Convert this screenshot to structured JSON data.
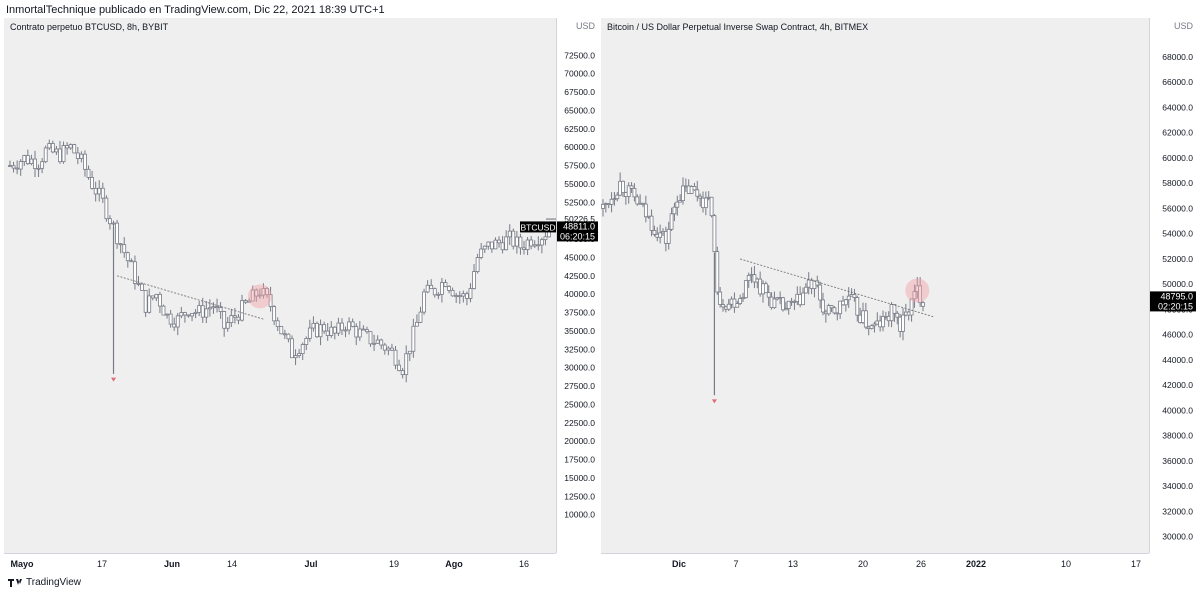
{
  "header": {
    "text": "InmortalTechnique publicado en TradingView.com, Dic 22, 2021 18:39 UTC+1"
  },
  "footer": {
    "brand": "TradingView"
  },
  "colors": {
    "candle": "#777b86",
    "trendline": "#6a6a6a",
    "highlight": "#f3a1a8",
    "marker": "#e06c75",
    "label_bg": "#000000",
    "label_text": "#ffffff",
    "plot_bg": "#efefef"
  },
  "chart_data": [
    {
      "type": "candlestick",
      "title": "Contrato perpetuo BTCUSD, 8h, BYBIT",
      "currency": "USD",
      "symbol_label": "BTCUSD",
      "ylim": [
        7500,
        73500
      ],
      "yticks": [
        "72500.0",
        "70000.0",
        "67500.0",
        "65000.0",
        "62500.0",
        "60000.0",
        "57500.0",
        "55000.0",
        "52500.0",
        "50226.5",
        "47500.0",
        "45000.0",
        "42500.0",
        "40000.0",
        "37500.0",
        "35000.0",
        "32500.0",
        "30000.0",
        "27500.0",
        "25000.0",
        "22500.0",
        "20000.0",
        "17500.0",
        "15000.0",
        "12500.0",
        "10000.0"
      ],
      "xticks": [
        "Mayo",
        "17",
        "Jun",
        "14",
        "Jul",
        "19",
        "Ago",
        "16"
      ],
      "last_price": "48811.0",
      "countdown": "06:20:15",
      "high_mark": "50226.5",
      "approx_path": [
        [
          0,
          57500
        ],
        [
          4,
          58500
        ],
        [
          8,
          58000
        ],
        [
          10,
          59500
        ],
        [
          14,
          59000
        ],
        [
          17,
          60000
        ],
        [
          20,
          58000
        ],
        [
          23,
          55000
        ],
        [
          26,
          52500
        ],
        [
          30,
          48000
        ],
        [
          34,
          43500
        ],
        [
          38,
          38500
        ],
        [
          41,
          40000
        ],
        [
          44,
          37000
        ],
        [
          47,
          36500
        ],
        [
          50,
          38000
        ],
        [
          53,
          37500
        ],
        [
          57,
          38500
        ],
        [
          60,
          35500
        ],
        [
          63,
          37000
        ],
        [
          66,
          38500
        ],
        [
          70,
          40500
        ],
        [
          73,
          38500
        ],
        [
          76,
          35000
        ],
        [
          79,
          32000
        ],
        [
          82,
          33500
        ],
        [
          85,
          35000
        ],
        [
          88,
          35500
        ],
        [
          91,
          34500
        ],
        [
          94,
          36000
        ],
        [
          97,
          35000
        ],
        [
          100,
          34000
        ],
        [
          103,
          33500
        ],
        [
          106,
          32500
        ],
        [
          108,
          31500
        ],
        [
          110,
          30000
        ],
        [
          112,
          33000
        ],
        [
          114,
          36000
        ],
        [
          116,
          40000
        ],
        [
          119,
          40500
        ],
        [
          122,
          42000
        ],
        [
          125,
          40000
        ],
        [
          128,
          39500
        ],
        [
          131,
          45000
        ],
        [
          134,
          46500
        ],
        [
          137,
          47000
        ],
        [
          140,
          47500
        ],
        [
          143,
          46500
        ],
        [
          146,
          47500
        ],
        [
          149,
          48000
        ],
        [
          151,
          48811
        ]
      ],
      "trendline": {
        "start": [
          30,
          42500
        ],
        "end": [
          71,
          36600
        ]
      },
      "annotations": [
        {
          "kind": "highlight-circle",
          "at": [
            70,
            39700
          ]
        },
        {
          "kind": "low-marker",
          "at": [
            29,
            28500
          ]
        }
      ]
    },
    {
      "type": "candlestick",
      "title": "Bitcoin / US Dollar Perpetual Inverse Swap Contract, 4h, BITMEX",
      "currency": "USD",
      "ylim": [
        29500,
        69500
      ],
      "yticks": [
        "68000.0",
        "66000.0",
        "64000.0",
        "62000.0",
        "60000.0",
        "58000.0",
        "56000.0",
        "54000.0",
        "52000.0",
        "50000.0",
        "48000.0",
        "46000.0",
        "44000.0",
        "42000.0",
        "40000.0",
        "38000.0",
        "36000.0",
        "34000.0",
        "32000.0",
        "30000.0"
      ],
      "xticks": [
        "Dic",
        "7",
        "13",
        "20",
        "26",
        "2022",
        "10",
        "17"
      ],
      "last_price": "48795.0",
      "countdown": "02:20:15",
      "approx_path": [
        [
          0,
          56000
        ],
        [
          6,
          58000
        ],
        [
          12,
          56500
        ],
        [
          18,
          54500
        ],
        [
          22,
          53500
        ],
        [
          26,
          57000
        ],
        [
          30,
          57500
        ],
        [
          34,
          57000
        ],
        [
          38,
          56000
        ],
        [
          40,
          49000
        ],
        [
          44,
          48500
        ],
        [
          48,
          49000
        ],
        [
          52,
          51000
        ],
        [
          56,
          49500
        ],
        [
          60,
          48500
        ],
        [
          64,
          48000
        ],
        [
          68,
          48500
        ],
        [
          72,
          50000
        ],
        [
          75,
          49500
        ],
        [
          78,
          47500
        ],
        [
          82,
          48000
        ],
        [
          86,
          49000
        ],
        [
          90,
          47500
        ],
        [
          94,
          46500
        ],
        [
          98,
          47000
        ],
        [
          102,
          48000
        ],
        [
          104,
          46500
        ],
        [
          106,
          47500
        ],
        [
          108,
          48500
        ],
        [
          110,
          49500
        ],
        [
          112,
          48795
        ]
      ],
      "trendline": {
        "start": [
          48,
          52000
        ],
        "end": [
          116,
          47400
        ]
      },
      "annotations": [
        {
          "kind": "highlight-circle",
          "at": [
            110,
            49500
          ]
        },
        {
          "kind": "low-marker",
          "at": [
            39,
            40800
          ]
        }
      ]
    }
  ]
}
